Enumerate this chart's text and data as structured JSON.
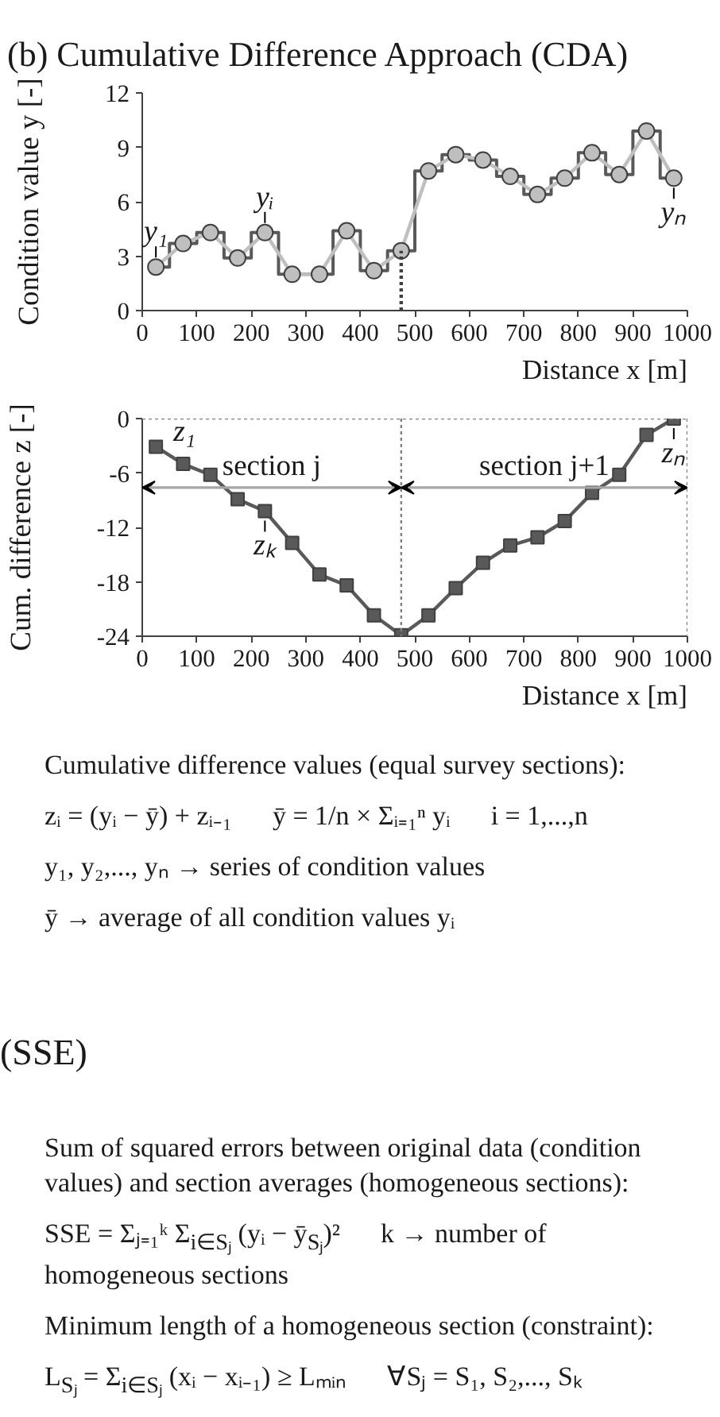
{
  "chart_data": [
    {
      "type": "line",
      "title": "(b) Cumulative Difference Approach (CDA)",
      "xlabel": "Distance x [m]",
      "ylabel": "Condition value y [-]",
      "x": [
        25,
        75,
        125,
        175,
        225,
        275,
        325,
        375,
        425,
        475,
        525,
        575,
        625,
        675,
        725,
        775,
        825,
        875,
        925,
        975
      ],
      "series": [
        {
          "type": "step",
          "color": "#595959",
          "values": [
            2.4,
            3.7,
            4.3,
            2.9,
            4.3,
            2.0,
            2.0,
            4.4,
            2.2,
            3.3,
            7.7,
            8.6,
            8.3,
            7.4,
            6.4,
            7.3,
            8.7,
            7.5,
            9.9,
            7.3
          ]
        },
        {
          "type": "line",
          "color": "#bfbfbf",
          "marker": "circle",
          "values": [
            2.4,
            3.7,
            4.3,
            2.9,
            4.3,
            2.0,
            2.0,
            4.4,
            2.2,
            3.3,
            7.7,
            8.6,
            8.3,
            7.4,
            6.4,
            7.3,
            8.7,
            7.5,
            9.9,
            7.3
          ]
        },
        {
          "type": "line",
          "x": [
            475,
            475
          ],
          "values": [
            0,
            3.3
          ],
          "color": "#404040",
          "line_style": "dotted"
        }
      ],
      "xlim": [
        0,
        1000
      ],
      "xticks": [
        0,
        100,
        200,
        300,
        400,
        500,
        600,
        700,
        800,
        900,
        1000
      ],
      "ylim": [
        0,
        12
      ],
      "yticks": [
        0,
        3,
        6,
        9,
        12
      ],
      "annotations": [
        {
          "text": "y₁",
          "x": 25,
          "y": 2.4
        },
        {
          "text": "yᵢ",
          "x": 225,
          "y": 4.3
        },
        {
          "text": "yₙ",
          "x": 975,
          "y": 7.3
        }
      ]
    },
    {
      "type": "line",
      "xlabel": "Distance x [m]",
      "ylabel": "Cum. difference z [-]",
      "x": [
        25,
        75,
        125,
        175,
        225,
        275,
        325,
        375,
        425,
        475,
        525,
        575,
        625,
        675,
        725,
        775,
        825,
        875,
        925,
        975
      ],
      "series": [
        {
          "color": "#595959",
          "values": [
            -3.1,
            -5.0,
            -6.2,
            -8.9,
            -10.2,
            -13.7,
            -17.2,
            -18.4,
            -21.7,
            -23.9,
            -21.7,
            -18.7,
            -15.9,
            -14.0,
            -13.1,
            -11.3,
            -8.2,
            -6.2,
            -1.8,
            0
          ]
        }
      ],
      "marker": "square",
      "xlim": [
        0,
        1000
      ],
      "xticks": [
        0,
        100,
        200,
        300,
        400,
        500,
        600,
        700,
        800,
        900,
        1000
      ],
      "ylim": [
        -24,
        0
      ],
      "yticks": [
        -24,
        -18,
        -12,
        -6,
        0
      ],
      "ref_lines": [
        {
          "axis": "x",
          "value": 475,
          "line_style": "dotted",
          "color": "#7f7f7f"
        },
        {
          "axis": "x",
          "value": 1000,
          "line_style": "dotted",
          "color": "#7f7f7f"
        },
        {
          "axis": "y",
          "value": 0,
          "line_style": "dotted",
          "color": "#7f7f7f"
        }
      ],
      "annotations": [
        {
          "text": "z₁",
          "x": 25,
          "y": -3.1
        },
        {
          "text": "zₖ",
          "x": 225,
          "y": -10.2
        },
        {
          "text": "zₙ",
          "x": 975,
          "y": 0
        },
        "section j",
        "section j+1"
      ]
    },
    {
      "type": "other",
      "annotations": [
        "Cumulative difference values (equal survey sections):",
        "zᵢ = (yᵢ − ȳ) + zᵢ₋₁      ȳ = 1/n × Σᵢ₌₁ⁿ yᵢ      i = 1,...,n",
        "y₁, y₂,..., yₙ → series of condition values",
        "ȳ → average of all condition values yᵢ"
      ]
    },
    {
      "type": "other",
      "title": "(SSE)",
      "annotations": [
        "Sum of squared errors between original data (condition values) and section averages (homogeneous sections):",
        "SSE = Σⱼ₌₁ᵏ Σ$_{i∈Sⱼ}$ (yᵢ − ȳ$_{Sⱼ}$)²      k → number of homogeneous sections",
        "Minimum length of a homogeneous section (constraint):",
        "L$_{Sⱼ}$ = Σ$_{i∈Sⱼ}$ (xᵢ − xᵢ₋₁) ≥ Lₘᵢₙ      ∀Sⱼ = S₁, S₂,..., Sₖ"
      ]
    }
  ]
}
